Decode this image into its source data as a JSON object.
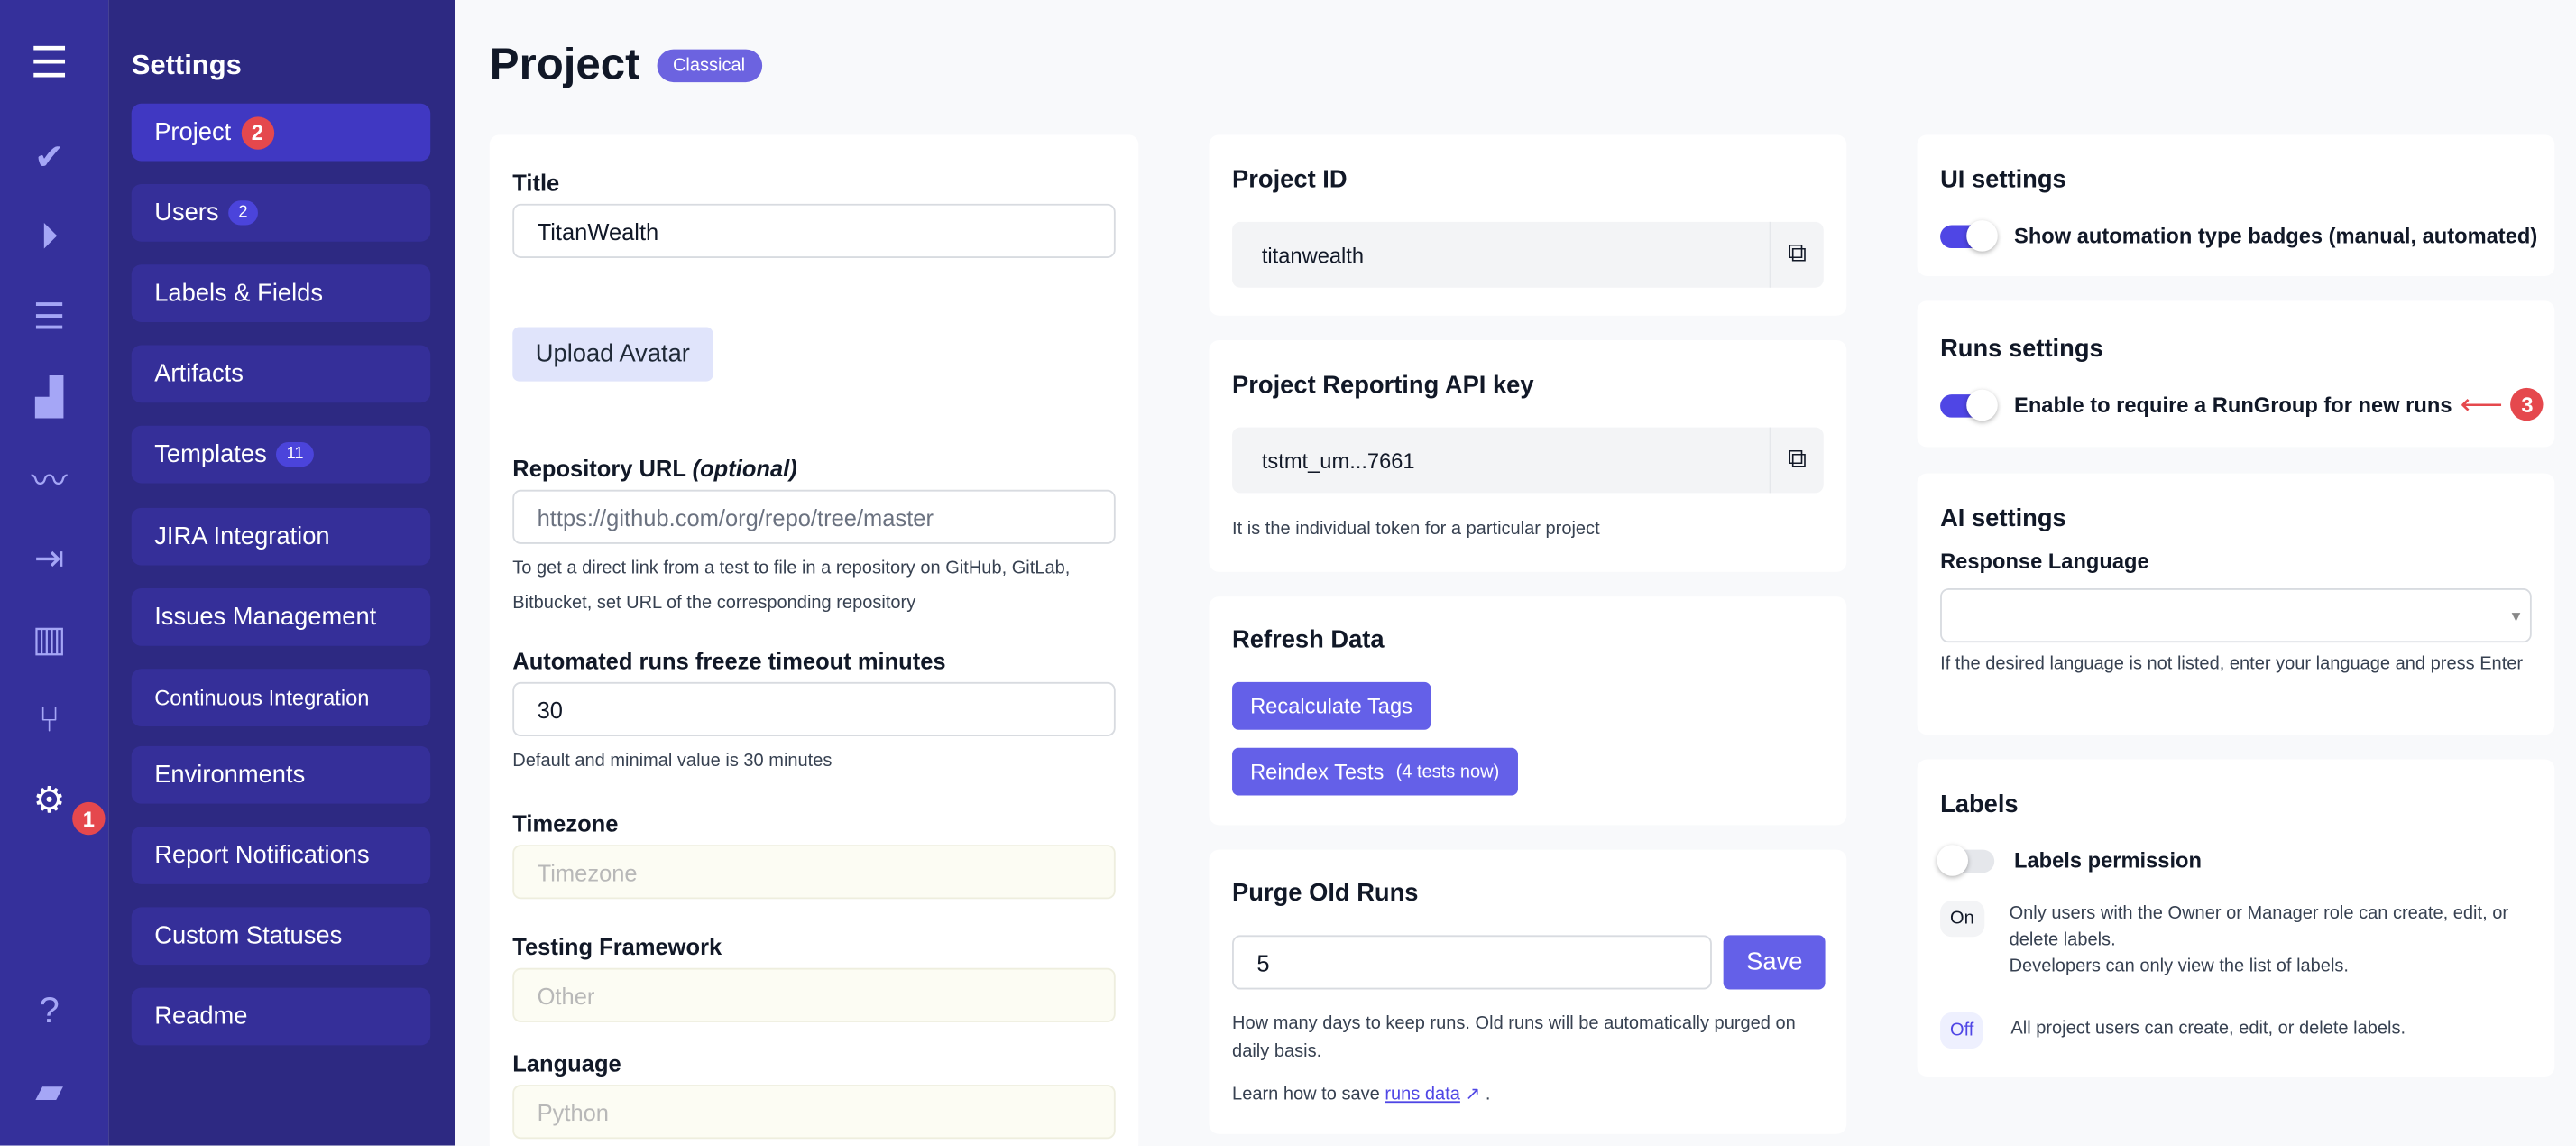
{
  "sidebar": {
    "heading": "Settings",
    "items": [
      {
        "label": "Project",
        "annotation": "2"
      },
      {
        "label": "Users",
        "count": "2"
      },
      {
        "label": "Labels & Fields"
      },
      {
        "label": "Artifacts"
      },
      {
        "label": "Templates",
        "count": "11"
      },
      {
        "label": "JIRA Integration"
      },
      {
        "label": "Issues Management"
      },
      {
        "label": "Continuous Integration"
      },
      {
        "label": "Environments"
      },
      {
        "label": "Report Notifications"
      },
      {
        "label": "Custom Statuses"
      },
      {
        "label": "Readme"
      }
    ],
    "settings_annotation": "1"
  },
  "rail_icons": [
    "menu-icon",
    "check-icon",
    "play-icon",
    "checklist-icon",
    "steps-icon",
    "pulse-icon",
    "import-icon",
    "chart-icon",
    "branch-icon",
    "gear-icon",
    "help-icon",
    "folder-icon"
  ],
  "header": {
    "title": "Project",
    "badge": "Classical"
  },
  "project_form": {
    "title_label": "Title",
    "title_value": "TitanWealth",
    "upload_avatar": "Upload Avatar",
    "repo_label": "Repository URL",
    "repo_optional": "(optional)",
    "repo_placeholder": "https://github.com/org/repo/tree/master",
    "repo_help": "To get a direct link from a test to file in a repository on GitHub, GitLab, Bitbucket, set URL of the corresponding repository",
    "freeze_label": "Automated runs freeze timeout minutes",
    "freeze_value": "30",
    "freeze_help": "Default and minimal value is 30 minutes",
    "timezone_label": "Timezone",
    "timezone_placeholder": "Timezone",
    "framework_label": "Testing Framework",
    "framework_placeholder": "Other",
    "language_label": "Language",
    "language_placeholder": "Python"
  },
  "project_id": {
    "heading": "Project ID",
    "value": "titanwealth"
  },
  "api_key": {
    "heading": "Project Reporting API key",
    "value": "tstmt_um...7661",
    "help": "It is the individual token for a particular project"
  },
  "refresh": {
    "heading": "Refresh Data",
    "recalc": "Recalculate Tags",
    "reindex": "Reindex Tests",
    "reindex_note": "(4 tests now)"
  },
  "purge": {
    "heading": "Purge Old Runs",
    "value": "5",
    "save": "Save",
    "help": "How many days to keep runs. Old runs will be automatically purged on daily basis.",
    "learn_prefix": "Learn how to save",
    "learn_link": "runs data",
    "learn_suffix": "."
  },
  "ui_settings": {
    "heading": "UI settings",
    "toggle_label": "Show automation type badges (manual, automated)",
    "toggle_on": true
  },
  "runs_settings": {
    "heading": "Runs settings",
    "toggle_label": "Enable to require a RunGroup for new runs",
    "toggle_on": true,
    "annotation": "3"
  },
  "ai_settings": {
    "heading": "AI settings",
    "lang_label": "Response Language",
    "lang_value": "",
    "help": "If the desired language is not listed, enter your language and press Enter"
  },
  "labels": {
    "heading": "Labels",
    "toggle_label": "Labels permission",
    "toggle_on": false,
    "on_pill": "On",
    "on_text1": "Only users with the Owner or Manager role can create, edit, or delete labels.",
    "on_text2": "Developers can only view the list of labels.",
    "off_pill": "Off",
    "off_text": "All project users can create, edit, or delete labels."
  },
  "colors": {
    "accent": "#6460e8",
    "rail": "#35309b",
    "panel": "#2d2982",
    "annotation": "#e5484d"
  }
}
